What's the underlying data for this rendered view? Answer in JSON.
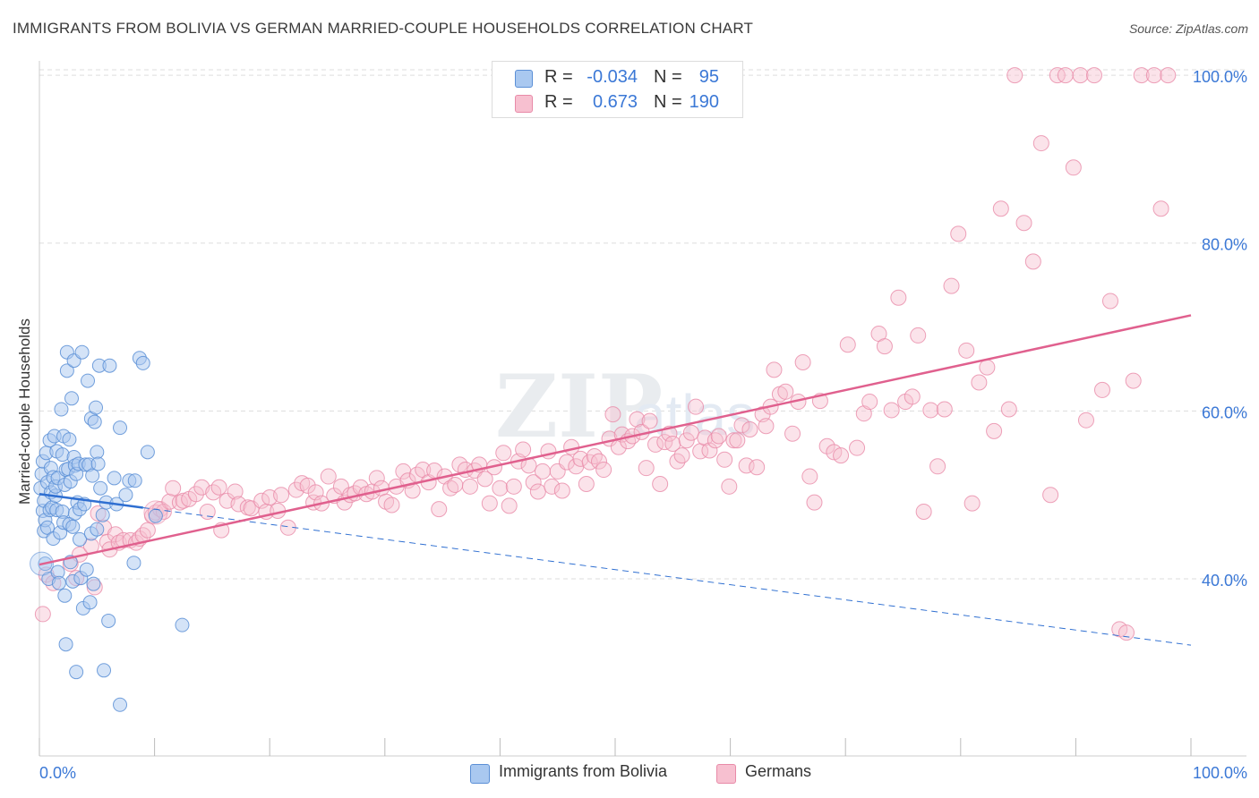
{
  "header": {
    "title": "IMMIGRANTS FROM BOLIVIA VS GERMAN MARRIED-COUPLE HOUSEHOLDS CORRELATION CHART",
    "source": "Source: ZipAtlas.com"
  },
  "colors": {
    "blue_fill": "#a9c8f0",
    "blue_stroke": "#5b8fd6",
    "blue_line": "#2f6fd1",
    "pink_fill": "#f7c0d0",
    "pink_stroke": "#e88aa8",
    "pink_line": "#e0608e",
    "axis_text": "#3b78d6",
    "grid": "#dddddd"
  },
  "legend_top": {
    "rows": [
      {
        "r_label": "R =",
        "r_value": "-0.034",
        "n_label": "N =",
        "n_value": "95"
      },
      {
        "r_label": "R =",
        "r_value": "0.673",
        "n_label": "N =",
        "n_value": "190"
      }
    ]
  },
  "legend_bottom": {
    "items": [
      "Immigrants from Bolivia",
      "Germans"
    ]
  },
  "chart_data": {
    "type": "scatter",
    "title": "IMMIGRANTS FROM BOLIVIA VS GERMAN MARRIED-COUPLE HOUSEHOLDS CORRELATION CHART",
    "xlabel": "",
    "ylabel": "Married-couple Households",
    "xlim": [
      0,
      100
    ],
    "ylim": [
      18.9,
      101.5
    ],
    "x_tick_labels": [
      "0.0%",
      "100.0%"
    ],
    "y_tick_labels": [
      "40.0%",
      "60.0%",
      "80.0%",
      "100.0%"
    ],
    "y_ticks": [
      40,
      60,
      80,
      100
    ],
    "watermark": "ZIPatlas",
    "grid": true,
    "series": [
      {
        "name": "Immigrants from Bolivia",
        "trend": {
          "x": [
            0,
            100
          ],
          "y": [
            50.1,
            32.1
          ],
          "solid_until_x": 9
        },
        "points": [
          [
            0.1,
            50.8
          ],
          [
            0.2,
            52.5
          ],
          [
            0.3,
            54.0
          ],
          [
            0.3,
            48.1
          ],
          [
            0.4,
            49.3
          ],
          [
            0.4,
            45.7
          ],
          [
            0.5,
            41.8
          ],
          [
            0.5,
            47.0
          ],
          [
            0.6,
            55.0
          ],
          [
            0.7,
            51.5
          ],
          [
            0.7,
            46.1
          ],
          [
            0.8,
            40.0
          ],
          [
            0.9,
            48.2
          ],
          [
            0.9,
            56.5
          ],
          [
            1.0,
            50.3
          ],
          [
            1.0,
            53.2
          ],
          [
            1.1,
            48.5
          ],
          [
            1.2,
            44.8
          ],
          [
            1.2,
            52.1
          ],
          [
            1.3,
            57.0
          ],
          [
            1.4,
            49.9
          ],
          [
            1.4,
            51.0
          ],
          [
            1.5,
            48.2
          ],
          [
            1.5,
            55.2
          ],
          [
            1.6,
            52.0
          ],
          [
            1.6,
            40.8
          ],
          [
            1.7,
            39.5
          ],
          [
            1.8,
            45.5
          ],
          [
            1.9,
            60.2
          ],
          [
            2.0,
            48.0
          ],
          [
            2.0,
            54.8
          ],
          [
            2.1,
            57.0
          ],
          [
            2.1,
            46.7
          ],
          [
            2.2,
            51.2
          ],
          [
            2.2,
            38.0
          ],
          [
            2.3,
            53.0
          ],
          [
            2.3,
            32.2
          ],
          [
            2.4,
            67.0
          ],
          [
            2.4,
            64.8
          ],
          [
            2.5,
            53.1
          ],
          [
            2.6,
            56.6
          ],
          [
            2.6,
            46.5
          ],
          [
            2.7,
            51.6
          ],
          [
            2.7,
            42.0
          ],
          [
            2.8,
            61.5
          ],
          [
            2.9,
            46.2
          ],
          [
            2.9,
            39.7
          ],
          [
            3.0,
            54.5
          ],
          [
            3.0,
            66.0
          ],
          [
            3.1,
            53.5
          ],
          [
            3.1,
            47.8
          ],
          [
            3.2,
            28.9
          ],
          [
            3.2,
            52.5
          ],
          [
            3.3,
            49.1
          ],
          [
            3.4,
            53.7
          ],
          [
            3.5,
            48.3
          ],
          [
            3.5,
            44.7
          ],
          [
            3.6,
            40.1
          ],
          [
            3.7,
            67.0
          ],
          [
            3.8,
            36.5
          ],
          [
            3.9,
            48.9
          ],
          [
            4.0,
            53.6
          ],
          [
            4.1,
            41.1
          ],
          [
            4.2,
            63.6
          ],
          [
            4.3,
            53.6
          ],
          [
            4.4,
            37.2
          ],
          [
            4.5,
            59.1
          ],
          [
            4.5,
            45.4
          ],
          [
            4.6,
            52.3
          ],
          [
            4.7,
            39.4
          ],
          [
            4.8,
            58.7
          ],
          [
            4.9,
            60.4
          ],
          [
            5.0,
            55.1
          ],
          [
            5.0,
            45.9
          ],
          [
            5.1,
            53.7
          ],
          [
            5.2,
            65.4
          ],
          [
            5.3,
            50.8
          ],
          [
            5.5,
            47.6
          ],
          [
            5.6,
            29.1
          ],
          [
            5.8,
            49.1
          ],
          [
            6.0,
            35.0
          ],
          [
            6.1,
            65.4
          ],
          [
            6.5,
            52.0
          ],
          [
            6.7,
            48.9
          ],
          [
            7.0,
            58.0
          ],
          [
            7.0,
            25.0
          ],
          [
            7.5,
            50.0
          ],
          [
            7.8,
            51.7
          ],
          [
            8.2,
            41.9
          ],
          [
            8.3,
            51.7
          ],
          [
            8.7,
            66.3
          ],
          [
            9.0,
            65.7
          ],
          [
            9.4,
            55.1
          ],
          [
            10.1,
            47.5
          ],
          [
            12.4,
            34.5
          ]
        ]
      },
      {
        "name": "Germans",
        "trend": {
          "x": [
            0,
            100
          ],
          "y": [
            41.7,
            71.4
          ]
        },
        "points": [
          [
            0.3,
            35.8
          ],
          [
            0.6,
            40.5
          ],
          [
            1.2,
            39.5
          ],
          [
            2.7,
            41.8
          ],
          [
            3.2,
            40.1
          ],
          [
            3.5,
            42.9
          ],
          [
            4.5,
            43.9
          ],
          [
            4.8,
            39.0
          ],
          [
            5.1,
            47.8
          ],
          [
            5.6,
            46.1
          ],
          [
            5.9,
            44.4
          ],
          [
            6.1,
            43.5
          ],
          [
            6.6,
            45.3
          ],
          [
            6.9,
            44.3
          ],
          [
            7.3,
            44.6
          ],
          [
            7.9,
            44.6
          ],
          [
            8.4,
            44.3
          ],
          [
            8.7,
            44.8
          ],
          [
            9.0,
            45.2
          ],
          [
            9.4,
            45.8
          ],
          [
            9.8,
            47.5
          ],
          [
            10.1,
            47.9
          ],
          [
            10.5,
            48.3
          ],
          [
            10.8,
            48.0
          ],
          [
            11.3,
            49.2
          ],
          [
            11.6,
            50.8
          ],
          [
            12.2,
            49.1
          ],
          [
            12.5,
            49.3
          ],
          [
            13.0,
            49.5
          ],
          [
            13.6,
            50.1
          ],
          [
            14.1,
            50.9
          ],
          [
            14.6,
            48.0
          ],
          [
            15.1,
            50.3
          ],
          [
            15.6,
            50.9
          ],
          [
            15.8,
            45.8
          ],
          [
            16.3,
            49.3
          ],
          [
            17.0,
            50.4
          ],
          [
            17.3,
            48.9
          ],
          [
            18.1,
            48.5
          ],
          [
            18.4,
            48.4
          ],
          [
            19.3,
            49.3
          ],
          [
            19.7,
            48.0
          ],
          [
            20.0,
            49.7
          ],
          [
            20.7,
            48.1
          ],
          [
            21.0,
            50.0
          ],
          [
            21.6,
            46.1
          ],
          [
            22.3,
            50.6
          ],
          [
            22.8,
            51.4
          ],
          [
            23.3,
            51.1
          ],
          [
            23.8,
            49.1
          ],
          [
            24.0,
            50.3
          ],
          [
            24.5,
            49.0
          ],
          [
            25.1,
            52.2
          ],
          [
            25.6,
            49.9
          ],
          [
            26.2,
            51.0
          ],
          [
            26.5,
            49.1
          ],
          [
            27.0,
            50.0
          ],
          [
            27.4,
            50.2
          ],
          [
            27.9,
            50.9
          ],
          [
            28.4,
            50.1
          ],
          [
            28.9,
            50.4
          ],
          [
            29.3,
            52.0
          ],
          [
            29.7,
            50.8
          ],
          [
            30.1,
            49.2
          ],
          [
            30.6,
            48.8
          ],
          [
            31.0,
            51.0
          ],
          [
            31.6,
            52.8
          ],
          [
            32.0,
            51.7
          ],
          [
            32.4,
            50.5
          ],
          [
            32.8,
            52.4
          ],
          [
            33.3,
            53.0
          ],
          [
            33.8,
            51.5
          ],
          [
            34.3,
            52.9
          ],
          [
            34.7,
            48.3
          ],
          [
            35.2,
            52.2
          ],
          [
            35.7,
            50.8
          ],
          [
            36.1,
            51.2
          ],
          [
            36.5,
            53.6
          ],
          [
            37.0,
            53.0
          ],
          [
            37.4,
            51.0
          ],
          [
            37.8,
            52.9
          ],
          [
            38.2,
            53.6
          ],
          [
            38.7,
            51.9
          ],
          [
            39.1,
            49.0
          ],
          [
            39.5,
            53.3
          ],
          [
            40.0,
            50.8
          ],
          [
            40.3,
            55.0
          ],
          [
            40.8,
            48.7
          ],
          [
            41.2,
            51.0
          ],
          [
            41.6,
            54.0
          ],
          [
            42.0,
            55.4
          ],
          [
            42.5,
            53.5
          ],
          [
            42.9,
            51.5
          ],
          [
            43.3,
            50.4
          ],
          [
            43.7,
            52.8
          ],
          [
            44.2,
            55.2
          ],
          [
            44.5,
            51.0
          ],
          [
            45.0,
            52.8
          ],
          [
            45.4,
            50.5
          ],
          [
            45.8,
            53.9
          ],
          [
            46.2,
            55.7
          ],
          [
            46.6,
            53.4
          ],
          [
            47.0,
            54.3
          ],
          [
            47.5,
            51.3
          ],
          [
            47.8,
            53.9
          ],
          [
            48.2,
            54.6
          ],
          [
            48.6,
            54.0
          ],
          [
            49.0,
            53.0
          ],
          [
            49.5,
            56.7
          ],
          [
            49.8,
            59.6
          ],
          [
            50.3,
            55.7
          ],
          [
            50.6,
            57.2
          ],
          [
            51.1,
            56.4
          ],
          [
            51.5,
            57.0
          ],
          [
            51.9,
            59.0
          ],
          [
            52.3,
            57.5
          ],
          [
            52.7,
            53.2
          ],
          [
            53.0,
            58.8
          ],
          [
            53.5,
            56.0
          ],
          [
            53.9,
            51.3
          ],
          [
            54.3,
            56.3
          ],
          [
            54.7,
            57.3
          ],
          [
            55.0,
            56.1
          ],
          [
            55.4,
            54.0
          ],
          [
            55.8,
            54.7
          ],
          [
            56.2,
            56.5
          ],
          [
            56.6,
            57.4
          ],
          [
            57.0,
            60.5
          ],
          [
            57.4,
            55.2
          ],
          [
            57.8,
            56.8
          ],
          [
            58.2,
            55.3
          ],
          [
            58.7,
            56.5
          ],
          [
            59.0,
            57.0
          ],
          [
            59.5,
            54.2
          ],
          [
            59.9,
            51.0
          ],
          [
            60.3,
            56.5
          ],
          [
            60.6,
            56.5
          ],
          [
            61.0,
            58.3
          ],
          [
            61.4,
            53.5
          ],
          [
            61.7,
            57.8
          ],
          [
            62.3,
            53.3
          ],
          [
            62.8,
            59.6
          ],
          [
            63.1,
            58.2
          ],
          [
            63.5,
            60.5
          ],
          [
            63.8,
            64.9
          ],
          [
            64.3,
            62.0
          ],
          [
            64.8,
            62.3
          ],
          [
            65.4,
            57.3
          ],
          [
            65.9,
            61.1
          ],
          [
            66.3,
            65.8
          ],
          [
            66.9,
            52.2
          ],
          [
            67.3,
            49.1
          ],
          [
            67.8,
            61.2
          ],
          [
            68.4,
            55.8
          ],
          [
            69.0,
            55.1
          ],
          [
            69.6,
            54.7
          ],
          [
            70.2,
            67.9
          ],
          [
            71.0,
            55.6
          ],
          [
            71.6,
            59.7
          ],
          [
            72.1,
            61.1
          ],
          [
            72.9,
            69.2
          ],
          [
            73.4,
            67.7
          ],
          [
            74.0,
            60.1
          ],
          [
            74.6,
            73.5
          ],
          [
            75.2,
            61.1
          ],
          [
            75.8,
            61.7
          ],
          [
            76.3,
            69.0
          ],
          [
            76.8,
            48.0
          ],
          [
            77.4,
            60.1
          ],
          [
            78.0,
            53.4
          ],
          [
            78.6,
            60.2
          ],
          [
            79.2,
            74.9
          ],
          [
            79.8,
            81.1
          ],
          [
            80.5,
            67.2
          ],
          [
            81.0,
            49.0
          ],
          [
            81.6,
            63.4
          ],
          [
            82.3,
            65.2
          ],
          [
            82.9,
            57.6
          ],
          [
            83.5,
            84.1
          ],
          [
            84.2,
            60.2
          ],
          [
            84.7,
            100.0
          ],
          [
            85.5,
            82.4
          ],
          [
            86.3,
            77.8
          ],
          [
            87.0,
            91.9
          ],
          [
            87.8,
            50.0
          ],
          [
            88.4,
            100.0
          ],
          [
            89.1,
            100.0
          ],
          [
            89.8,
            89.0
          ],
          [
            90.4,
            100.0
          ],
          [
            90.9,
            58.9
          ],
          [
            91.6,
            100.0
          ],
          [
            92.3,
            62.5
          ],
          [
            93.0,
            73.1
          ],
          [
            93.8,
            34.0
          ],
          [
            94.4,
            33.6
          ],
          [
            95.0,
            63.6
          ],
          [
            95.7,
            100.0
          ],
          [
            96.8,
            100.0
          ],
          [
            97.4,
            84.1
          ],
          [
            98.0,
            100.0
          ]
        ]
      }
    ]
  }
}
